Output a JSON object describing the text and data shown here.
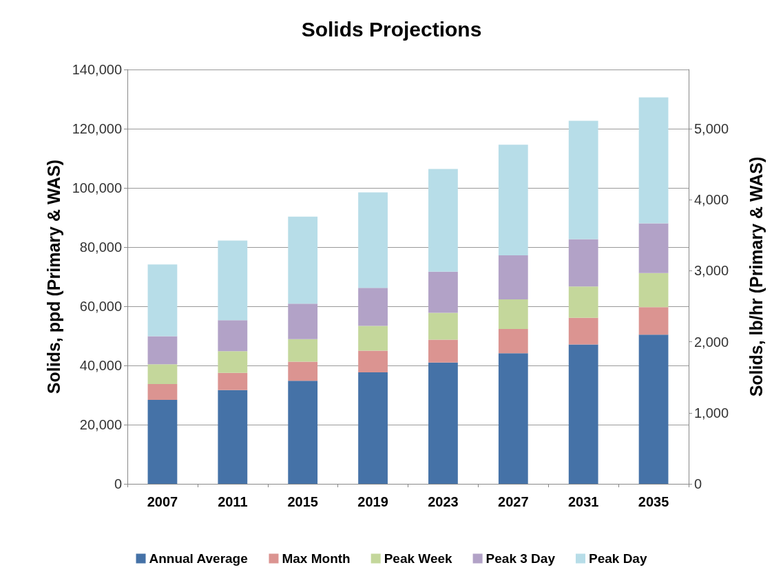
{
  "chart_data": {
    "type": "bar",
    "title": "Solids Projections",
    "ylabel": "Solids, ppd (Primary & WAS)",
    "y2label": "Solids, lb/hr (Primary & WAS)",
    "categories": [
      "2007",
      "2011",
      "2015",
      "2019",
      "2023",
      "2027",
      "2031",
      "2035"
    ],
    "stacked": true,
    "series": [
      {
        "name": "Annual Average",
        "color": "#4572a7",
        "values": [
          28400,
          31700,
          34800,
          37700,
          41000,
          44100,
          47100,
          50400
        ]
      },
      {
        "name": "Max Month",
        "color": "#db9491",
        "values": [
          5300,
          5800,
          6500,
          7300,
          7700,
          8200,
          9000,
          9300
        ]
      },
      {
        "name": "Peak Week",
        "color": "#c4d79b",
        "values": [
          6700,
          7300,
          7600,
          8400,
          9100,
          10000,
          10600,
          11500
        ]
      },
      {
        "name": "Peak 3 Day",
        "color": "#b2a2c7",
        "values": [
          9500,
          10500,
          12000,
          12800,
          13900,
          14900,
          16000,
          16800
        ]
      },
      {
        "name": "Peak Day",
        "color": "#b7dde8",
        "values": [
          24200,
          26900,
          29400,
          32300,
          34700,
          37400,
          40000,
          42600
        ]
      }
    ],
    "ylim": [
      0,
      140000
    ],
    "yticks": [
      0,
      {
        "value": 20000,
        "label": "20,000"
      },
      {
        "value": 40000,
        "label": "40,000"
      },
      {
        "value": 60000,
        "label": "60,000"
      },
      {
        "value": 80000,
        "label": "80,000"
      },
      {
        "value": 100000,
        "label": "100,000"
      },
      {
        "value": 120000,
        "label": "120,000"
      },
      {
        "value": 140000,
        "label": "140,000"
      }
    ],
    "y2lim": [
      0,
      5833.3
    ],
    "y2ticks": [
      0,
      {
        "value": 1000,
        "label": "1,000"
      },
      {
        "value": 2000,
        "label": "2,000"
      },
      {
        "value": 3000,
        "label": "3,000"
      },
      {
        "value": 4000,
        "label": "4,000"
      },
      {
        "value": 5000,
        "label": "5,000"
      }
    ],
    "grid": "y",
    "legend": "bottom"
  }
}
